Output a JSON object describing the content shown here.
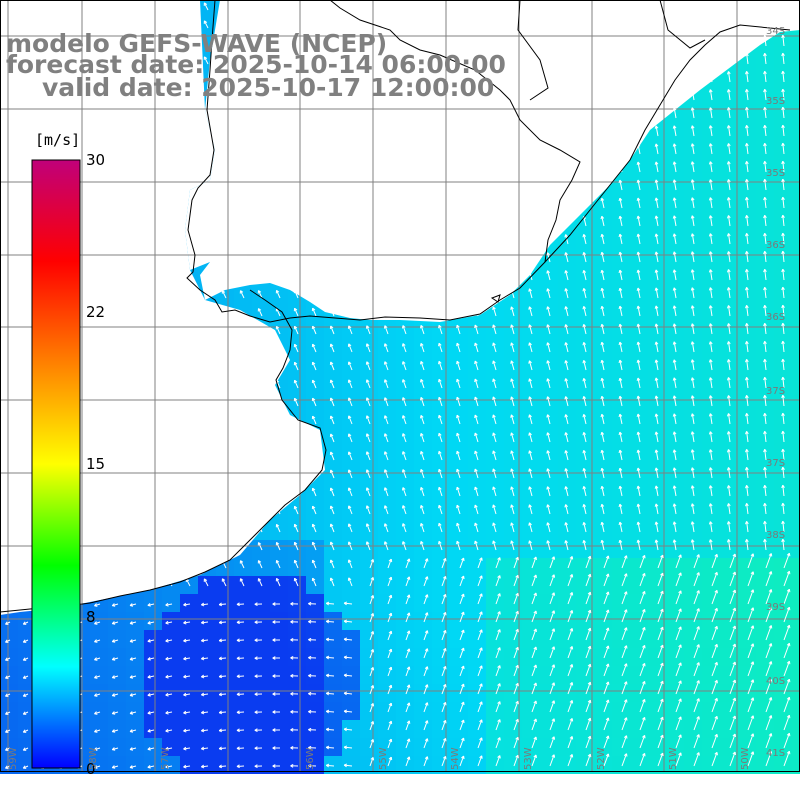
{
  "title": {
    "line1": "modelo GEFS-WAVE (NCEP)",
    "line2": "forecast date: 2025-10-14 06:00:00",
    "line3": "valid date: 2025-10-17 12:00:00"
  },
  "colorbar": {
    "unit": "[m/s]",
    "ticks": [
      "30",
      "22",
      "15",
      "8",
      "0"
    ],
    "tick_values": [
      30,
      22,
      15,
      8,
      0
    ],
    "range": [
      0,
      30
    ],
    "stops": [
      "#0000ff",
      "#00ffff",
      "#00ff00",
      "#ffff00",
      "#ff8000",
      "#ff0000",
      "#c0007a"
    ]
  },
  "map": {
    "variable": "wind speed with direction arrows",
    "land_color": "#ffffff",
    "coast_color": "#000000",
    "grid_color": "#808080",
    "lat_labels": [
      "34S",
      "35S",
      "35S",
      "36S",
      "36S",
      "37S",
      "37S",
      "38S",
      "39S",
      "40S",
      "41S"
    ],
    "lon_labels": [
      "59W",
      "58W",
      "57W",
      "56W",
      "55W",
      "54W",
      "53W",
      "52W",
      "51W",
      "50W"
    ],
    "speed_colors": {
      "low": "#0a3cf0",
      "mid": "#00d8f5",
      "high": "#10f0b8"
    }
  }
}
